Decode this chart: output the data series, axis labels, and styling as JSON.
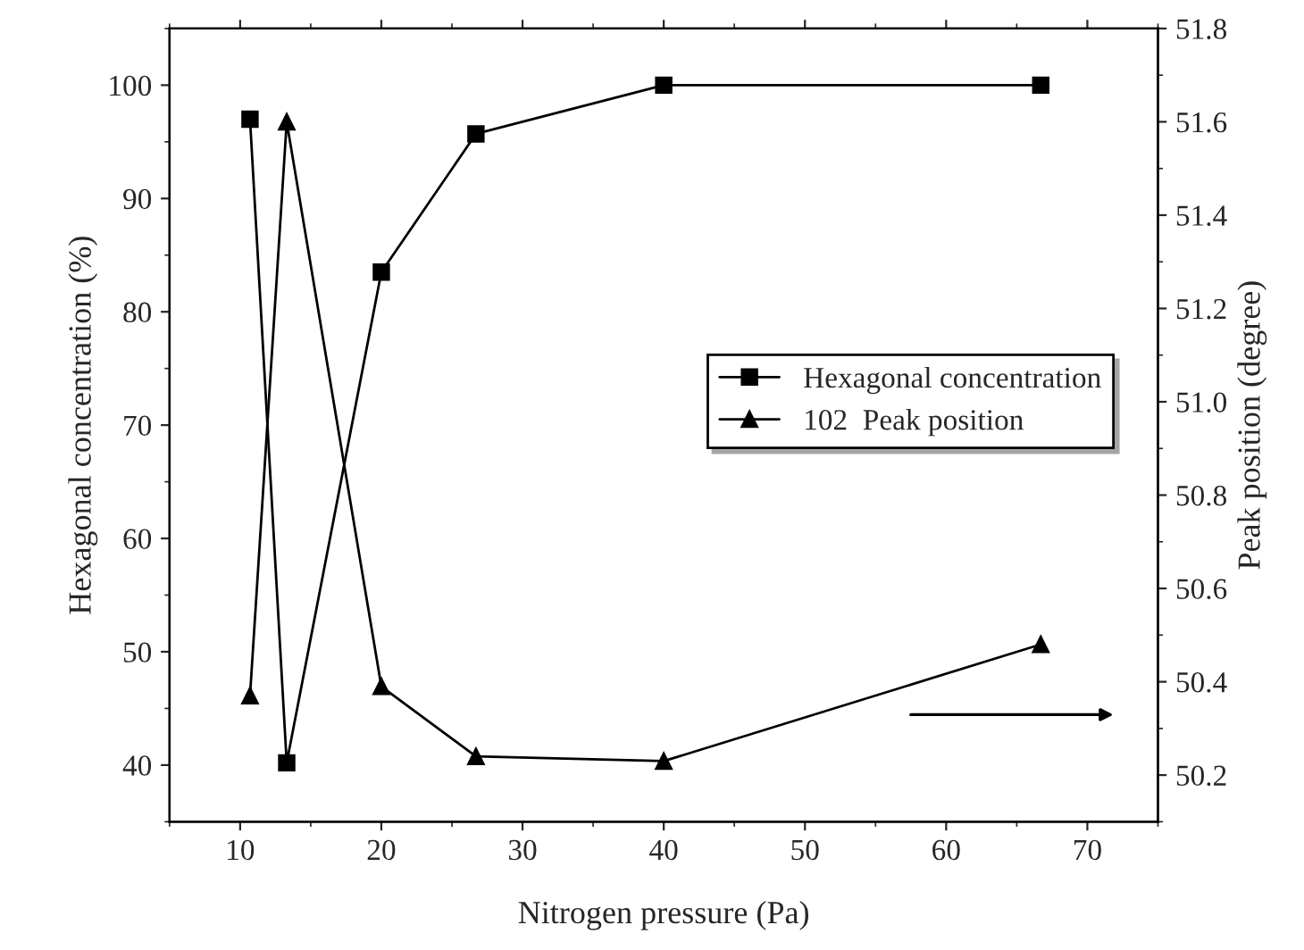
{
  "chart_data": {
    "type": "line",
    "xlabel": "Nitrogen pressure (Pa)",
    "ylabel": "Hexagonal concentration (%)",
    "y2label": "Peak position (degree)",
    "xlim": [
      5,
      75
    ],
    "xticks": [
      10,
      20,
      30,
      40,
      50,
      60,
      70
    ],
    "ylim": [
      35,
      105
    ],
    "yticks": [
      40,
      50,
      60,
      70,
      80,
      90,
      100
    ],
    "y2lim": [
      50.1,
      51.8
    ],
    "y2ticks": [
      {
        "value": 50.2,
        "label": "50.2"
      },
      {
        "value": 50.4,
        "label": "50.4"
      },
      {
        "value": 50.6,
        "label": "50.6"
      },
      {
        "value": 50.8,
        "label": "50.8"
      },
      {
        "value": 51.0,
        "label": "51.0"
      },
      {
        "value": 51.2,
        "label": "51.2"
      },
      {
        "value": 51.4,
        "label": "51.4"
      },
      {
        "value": 51.6,
        "label": "51.6"
      },
      {
        "value": 51.8,
        "label": "51.8"
      }
    ],
    "x": [
      10.7,
      13.3,
      20,
      26.7,
      40,
      66.7
    ],
    "series": [
      {
        "name": "Hexagonal concentration",
        "color": "#000000",
        "marker": "square",
        "values": [
          97.0,
          40.2,
          83.5,
          95.7,
          100,
          100
        ]
      },
      {
        "name": "102  Peak position",
        "color": "#000000",
        "marker": "triangle",
        "axis": "y2",
        "values": [
          50.37,
          51.6,
          50.39,
          50.24,
          50.23,
          50.48
        ]
      }
    ],
    "line_style": "solid",
    "grid": false,
    "legend": "right"
  }
}
